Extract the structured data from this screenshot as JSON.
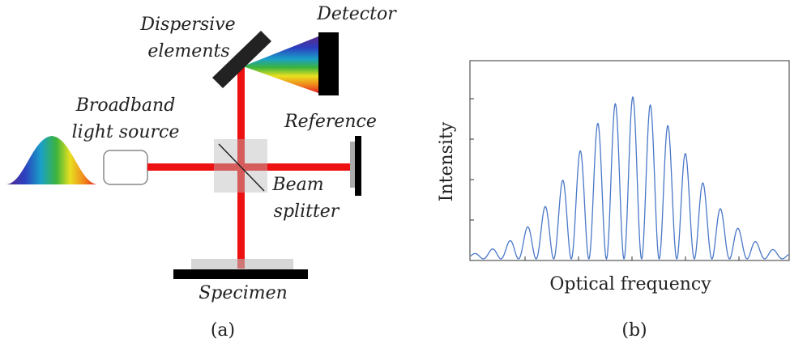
{
  "setup": {
    "dispersive_label": [
      "Dispersive",
      "elements"
    ],
    "detector_label": "Detector",
    "source_label": [
      "Broadband",
      "light source"
    ],
    "reference_label": "Reference",
    "splitter_label": [
      "Beam",
      "splitter"
    ],
    "specimen_label": "Specimen",
    "caption": "(a)"
  },
  "plot": {
    "y_label": "Intensity",
    "x_label": "Optical frequency",
    "caption": "(b)"
  }
}
